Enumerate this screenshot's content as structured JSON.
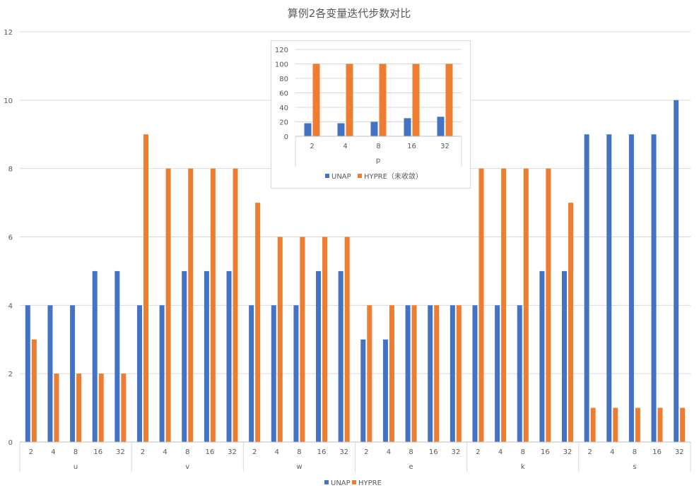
{
  "chart_data": [
    {
      "type": "bar",
      "title": "算例2各变量迭代步数对比",
      "xlabel": "",
      "ylabel": "",
      "ylim": [
        0,
        12
      ],
      "yticks": [
        0,
        2,
        4,
        6,
        8,
        10,
        12
      ],
      "grid": true,
      "legend": "bottom-center",
      "groups": [
        {
          "label": "u",
          "categories": [
            "2",
            "4",
            "8",
            "16",
            "32"
          ]
        },
        {
          "label": "v",
          "categories": [
            "2",
            "4",
            "8",
            "16",
            "32"
          ]
        },
        {
          "label": "w",
          "categories": [
            "2",
            "4",
            "8",
            "16",
            "32"
          ]
        },
        {
          "label": "e",
          "categories": [
            "2",
            "4",
            "8",
            "16",
            "32"
          ]
        },
        {
          "label": "k",
          "categories": [
            "2",
            "4",
            "8",
            "16",
            "32"
          ]
        },
        {
          "label": "s",
          "categories": [
            "2",
            "4",
            "8",
            "16",
            "32"
          ]
        }
      ],
      "series": [
        {
          "name": "UNAP",
          "color": "#4472c4",
          "values": [
            4,
            4,
            4,
            5,
            5,
            4,
            4,
            5,
            5,
            5,
            4,
            4,
            4,
            5,
            5,
            3,
            3,
            4,
            4,
            4,
            4,
            4,
            4,
            5,
            5,
            9,
            9,
            9,
            9,
            10
          ]
        },
        {
          "name": "HYPRE",
          "color": "#ed7d31",
          "values": [
            3,
            2,
            2,
            2,
            2,
            9,
            8,
            8,
            8,
            8,
            7,
            6,
            6,
            6,
            6,
            4,
            4,
            4,
            4,
            4,
            8,
            8,
            8,
            8,
            7,
            1,
            1,
            1,
            1,
            1
          ]
        }
      ]
    },
    {
      "type": "bar",
      "title": "",
      "xlabel": "p",
      "ylabel": "",
      "ylim": [
        0,
        120
      ],
      "yticks": [
        0,
        20,
        40,
        60,
        80,
        100,
        120
      ],
      "grid": true,
      "legend": "bottom-center",
      "categories": [
        "2",
        "4",
        "8",
        "16",
        "32"
      ],
      "series": [
        {
          "name": "UNAP",
          "color": "#4472c4",
          "values": [
            18,
            18,
            20,
            25,
            27
          ]
        },
        {
          "name": "HYPRE（未收敛）",
          "color": "#ed7d31",
          "values": [
            100,
            100,
            100,
            100,
            100
          ]
        }
      ]
    }
  ]
}
